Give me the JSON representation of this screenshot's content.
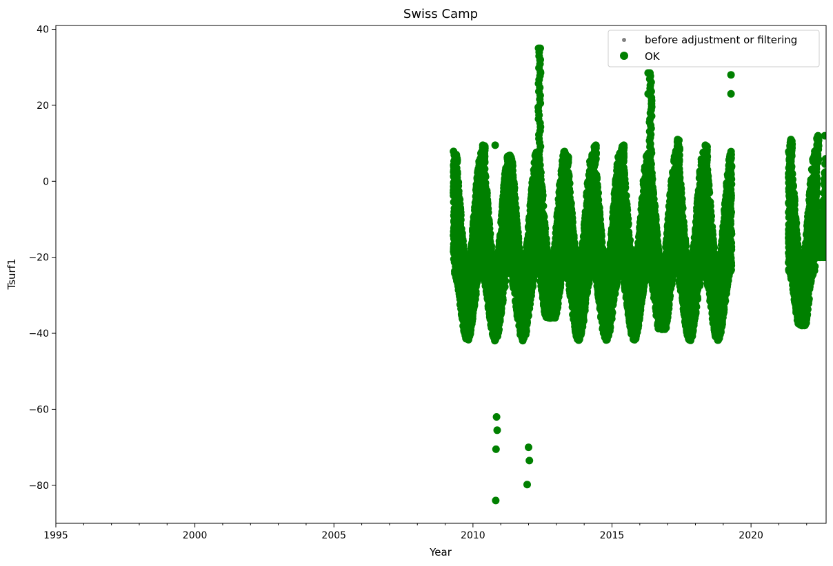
{
  "chart_data": {
    "type": "scatter",
    "title": "Swiss Camp",
    "xlabel": "Year",
    "ylabel": "Tsurf1",
    "xlim": [
      1995,
      2022.7
    ],
    "ylim": [
      -90,
      41
    ],
    "x_ticks": [
      1995,
      2000,
      2005,
      2010,
      2015,
      2020
    ],
    "x_tick_labels": [
      "1995",
      "2000",
      "2005",
      "2010",
      "2015",
      "2020"
    ],
    "x_minor_step": 1,
    "y_ticks": [
      40,
      20,
      0,
      -20,
      -40,
      -60,
      -80
    ],
    "y_tick_labels": [
      "40",
      "20",
      "0",
      "−20",
      "−40",
      "−60",
      "−80"
    ],
    "grid": false,
    "legend_position": "top-right",
    "series": [
      {
        "name": "before adjustment or filtering",
        "color": "#808080",
        "marker": "small-dot",
        "points": []
      },
      {
        "name": "OK",
        "color": "#008000",
        "marker": "large-dot",
        "season_cycles": [
          {
            "start": 2009.3,
            "end": 2010.3,
            "summer_max": 7,
            "winter_min": -48
          },
          {
            "start": 2010.3,
            "end": 2011.3,
            "summer_max": 9.5,
            "winter_min": -84
          },
          {
            "start": 2011.3,
            "end": 2012.3,
            "summer_max": 4,
            "winter_min": -80
          },
          {
            "start": 2012.3,
            "end": 2013.3,
            "summer_max": 35,
            "winter_min": -36
          },
          {
            "start": 2013.3,
            "end": 2014.3,
            "summer_max": 6.5,
            "winter_min": -43
          },
          {
            "start": 2014.3,
            "end": 2015.3,
            "summer_max": 9.5,
            "winter_min": -44
          },
          {
            "start": 2015.3,
            "end": 2016.3,
            "summer_max": 9.5,
            "winter_min": -42
          },
          {
            "start": 2016.3,
            "end": 2017.3,
            "summer_max": 28.5,
            "winter_min": -39
          },
          {
            "start": 2017.3,
            "end": 2018.3,
            "summer_max": 11,
            "winter_min": -42
          },
          {
            "start": 2018.3,
            "end": 2019.3,
            "summer_max": 9.5,
            "winter_min": -42
          },
          {
            "start": 2021.35,
            "end": 2022.3,
            "summer_max": 11,
            "winter_min": -38
          },
          {
            "start": 2022.3,
            "end": 2022.7,
            "summer_max": 12,
            "winter_min": -20
          }
        ],
        "data_gap": [
          2019.3,
          2021.35
        ],
        "notable_points": [
          {
            "x": 2010.8,
            "y": 9.5
          },
          {
            "x": 2010.85,
            "y": -62
          },
          {
            "x": 2010.83,
            "y": -70.5
          },
          {
            "x": 2010.87,
            "y": -65.5
          },
          {
            "x": 2010.82,
            "y": -84
          },
          {
            "x": 2011.95,
            "y": -79.8
          },
          {
            "x": 2012.0,
            "y": -70
          },
          {
            "x": 2012.03,
            "y": -73.5
          },
          {
            "x": 2012.42,
            "y": 35
          },
          {
            "x": 2012.42,
            "y": 32
          },
          {
            "x": 2012.43,
            "y": 28.5
          },
          {
            "x": 2016.3,
            "y": 28.5
          },
          {
            "x": 2016.3,
            "y": 23
          },
          {
            "x": 2019.28,
            "y": 28
          },
          {
            "x": 2019.28,
            "y": 23
          },
          {
            "x": 2022.65,
            "y": 12
          }
        ]
      }
    ]
  }
}
